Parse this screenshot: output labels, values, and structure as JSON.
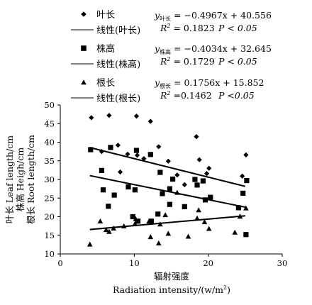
{
  "chart_data": {
    "type": "scatter",
    "xlabel_cn": "辐射强度",
    "xlabel_en": "Radiation intensity/(w/m",
    "xlabel_en_sup": "2",
    "xlabel_en_end": ")",
    "ylabel_lines": [
      "叶长 Leaf length/cm",
      "株高 Heigh/cm",
      "根长 Root length/cm"
    ],
    "xlim": [
      0,
      30
    ],
    "ylim": [
      10,
      50
    ],
    "xticks": [
      0,
      10,
      20,
      30
    ],
    "yticks": [
      10,
      15,
      20,
      25,
      30,
      35,
      40,
      45,
      50
    ],
    "grid": false,
    "legend_position": "top",
    "series": [
      {
        "name": "叶长",
        "marker": "diamond",
        "fit_label": "线性(叶长)",
        "equation": {
          "y": "y",
          "sub": "叶长",
          "rhs": "= −0.4967x + 40.556",
          "r2": "= 0.1823",
          "p": "P < 0.05"
        },
        "slope": -0.4967,
        "intercept": 40.556,
        "points": [
          [
            4.2,
            46.6
          ],
          [
            5.6,
            37.5
          ],
          [
            6.6,
            47.2
          ],
          [
            7.8,
            39.2
          ],
          [
            8.1,
            32.0
          ],
          [
            9.1,
            36.8
          ],
          [
            10.3,
            47.0
          ],
          [
            10.4,
            36.5
          ],
          [
            11.3,
            35.6
          ],
          [
            12.2,
            45.6
          ],
          [
            13.3,
            38.8
          ],
          [
            14.6,
            34.9
          ],
          [
            15.8,
            31.2
          ],
          [
            16.8,
            28.6
          ],
          [
            18.4,
            41.5
          ],
          [
            18.8,
            35.3
          ],
          [
            19.8,
            31.6
          ],
          [
            20.1,
            33.0
          ],
          [
            24.6,
            30.9
          ],
          [
            25.1,
            36.6
          ]
        ]
      },
      {
        "name": "株高",
        "marker": "square",
        "fit_label": "线性(株高)",
        "equation": {
          "y": "y",
          "sub": "株高",
          "rhs": "= −0.4034x + 32.645",
          "r2": "= 0.1729",
          "p": "P < 0.05"
        },
        "slope": -0.4034,
        "intercept": 32.645,
        "points": [
          [
            4.1,
            38.0
          ],
          [
            5.6,
            32.4
          ],
          [
            5.8,
            27.2
          ],
          [
            6.5,
            22.8
          ],
          [
            6.8,
            38.6
          ],
          [
            7.3,
            25.8
          ],
          [
            9.2,
            28.0
          ],
          [
            9.8,
            20.0
          ],
          [
            10.1,
            27.2
          ],
          [
            10.3,
            37.8
          ],
          [
            10.5,
            18.8
          ],
          [
            12.2,
            36.7
          ],
          [
            12.3,
            18.8
          ],
          [
            13.2,
            20.7
          ],
          [
            13.5,
            31.9
          ],
          [
            13.8,
            26.2
          ],
          [
            14.8,
            27.5
          ],
          [
            14.8,
            23.3
          ],
          [
            15.2,
            30.1
          ],
          [
            16.8,
            22.7
          ],
          [
            18.2,
            30.0
          ],
          [
            18.5,
            28.5
          ],
          [
            19.3,
            29.6
          ],
          [
            19.6,
            24.5
          ],
          [
            20.3,
            25.2
          ],
          [
            24.1,
            22.4
          ],
          [
            24.7,
            26.3
          ],
          [
            25.2,
            29.7
          ],
          [
            25.1,
            15.2
          ]
        ]
      },
      {
        "name": "根长",
        "marker": "triangle",
        "fit_label": "线性(根长)",
        "equation": {
          "y": "y",
          "sub": "根长",
          "rhs": "= 0.1756x + 15.852",
          "r2": "=0.1462",
          "p": "P <0.05"
        },
        "slope": 0.1756,
        "intercept": 15.852,
        "points": [
          [
            4.0,
            12.6
          ],
          [
            5.4,
            18.8
          ],
          [
            6.2,
            16.5
          ],
          [
            6.6,
            16.0
          ],
          [
            7.2,
            16.9
          ],
          [
            8.6,
            17.5
          ],
          [
            10.1,
            18.1
          ],
          [
            10.2,
            19.4
          ],
          [
            12.0,
            18.8
          ],
          [
            12.2,
            14.6
          ],
          [
            13.3,
            12.9
          ],
          [
            13.5,
            18.0
          ],
          [
            14.2,
            20.5
          ],
          [
            14.6,
            15.5
          ],
          [
            15.8,
            26.5
          ],
          [
            17.3,
            14.7
          ],
          [
            18.5,
            19.6
          ],
          [
            18.7,
            21.8
          ],
          [
            19.5,
            18.6
          ],
          [
            20.1,
            16.8
          ],
          [
            23.6,
            15.8
          ],
          [
            24.3,
            20.1
          ],
          [
            25.1,
            22.3
          ]
        ]
      }
    ]
  }
}
